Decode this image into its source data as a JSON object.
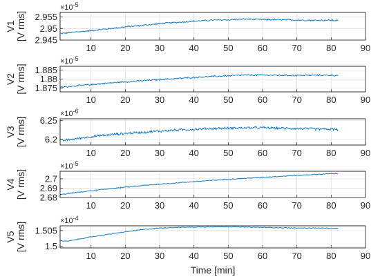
{
  "chart_data": [
    {
      "type": "line",
      "ylabel": "V1",
      "yunit": "[V rms]",
      "exponent_base": "×10",
      "exponent_power": "-5",
      "ylim": [
        2.945,
        2.957
      ],
      "yticks": [
        2.945,
        2.95,
        2.955
      ],
      "ytick_labels": [
        "2.945",
        "2.95",
        "2.955"
      ],
      "xlim": [
        1,
        90
      ],
      "xticks": [
        10,
        20,
        30,
        40,
        50,
        60,
        70,
        80,
        90
      ],
      "xtick_labels": [
        "10",
        "20",
        "30",
        "40",
        "50",
        "60",
        "70",
        "80",
        "90"
      ],
      "grid": true,
      "color": "#0072BD",
      "series": [
        {
          "x": [
            1,
            5,
            10,
            15,
            20,
            25,
            30,
            35,
            40,
            45,
            50,
            55,
            60,
            65,
            70,
            75,
            80,
            82
          ],
          "y": [
            2.9478,
            2.9484,
            2.9491,
            2.9499,
            2.9507,
            2.9514,
            2.9521,
            2.9527,
            2.9532,
            2.9536,
            2.9538,
            2.9541,
            2.9539,
            2.9538,
            2.9537,
            2.9536,
            2.9536,
            2.9535
          ],
          "noise": 0.0004
        }
      ]
    },
    {
      "type": "line",
      "ylabel": "V2",
      "yunit": "[V rms]",
      "exponent_base": "×10",
      "exponent_power": "-5",
      "ylim": [
        1.873,
        1.887
      ],
      "yticks": [
        1.875,
        1.88,
        1.885
      ],
      "ytick_labels": [
        "1.875",
        "1.88",
        "1.885"
      ],
      "xlim": [
        1,
        90
      ],
      "xticks": [
        10,
        20,
        30,
        40,
        50,
        60,
        70,
        80,
        90
      ],
      "xtick_labels": [
        "10",
        "20",
        "30",
        "40",
        "50",
        "60",
        "70",
        "80",
        "90"
      ],
      "grid": true,
      "color": "#0072BD",
      "series": [
        {
          "x": [
            1,
            5,
            10,
            15,
            20,
            25,
            30,
            35,
            40,
            45,
            50,
            55,
            60,
            65,
            70,
            75,
            80,
            82
          ],
          "y": [
            1.8755,
            1.8762,
            1.877,
            1.8778,
            1.8785,
            1.8791,
            1.8797,
            1.8803,
            1.8809,
            1.8814,
            1.8818,
            1.8822,
            1.8822,
            1.8821,
            1.882,
            1.8821,
            1.8821,
            1.882
          ],
          "noise": 0.0005
        }
      ]
    },
    {
      "type": "line",
      "ylabel": "V3",
      "yunit": "[V rms]",
      "exponent_base": "×10",
      "exponent_power": "-6",
      "ylim": [
        6.185,
        6.255
      ],
      "yticks": [
        6.2,
        6.25
      ],
      "ytick_labels": [
        "6.2",
        "6.25"
      ],
      "xlim": [
        1,
        90
      ],
      "xticks": [
        10,
        20,
        30,
        40,
        50,
        60,
        70,
        80,
        90
      ],
      "xtick_labels": [
        "10",
        "20",
        "30",
        "40",
        "50",
        "60",
        "70",
        "80",
        "90"
      ],
      "grid": true,
      "color": "#0072BD",
      "series": [
        {
          "x": [
            1,
            5,
            10,
            15,
            20,
            25,
            30,
            35,
            40,
            45,
            50,
            55,
            60,
            65,
            70,
            75,
            80,
            82
          ],
          "y": [
            6.196,
            6.201,
            6.207,
            6.212,
            6.216,
            6.219,
            6.222,
            6.225,
            6.227,
            6.229,
            6.23,
            6.231,
            6.231,
            6.23,
            6.229,
            6.228,
            6.227,
            6.226
          ],
          "noise": 0.004
        }
      ]
    },
    {
      "type": "line",
      "ylabel": "V4",
      "yunit": "[V rms]",
      "exponent_base": "×10",
      "exponent_power": "-5",
      "ylim": [
        2.68,
        2.708
      ],
      "yticks": [
        2.68,
        2.69,
        2.7
      ],
      "ytick_labels": [
        "2.68",
        "2.69",
        "2.7"
      ],
      "xlim": [
        1,
        90
      ],
      "xticks": [
        10,
        20,
        30,
        40,
        50,
        60,
        70,
        80,
        90
      ],
      "xtick_labels": [
        "10",
        "20",
        "30",
        "40",
        "50",
        "60",
        "70",
        "80",
        "90"
      ],
      "grid": true,
      "color": "#0072BD",
      "series": [
        {
          "x": [
            1,
            5,
            10,
            15,
            20,
            25,
            30,
            35,
            40,
            45,
            50,
            55,
            60,
            65,
            70,
            75,
            80,
            82
          ],
          "y": [
            2.683,
            2.685,
            2.6872,
            2.6892,
            2.691,
            2.6928,
            2.6942,
            2.6956,
            2.697,
            2.6982,
            2.6994,
            2.7005,
            2.7016,
            2.7026,
            2.7036,
            2.7046,
            2.7054,
            2.7056
          ],
          "noise": 0.0006
        }
      ]
    },
    {
      "type": "line",
      "ylabel": "V5",
      "yunit": "[V rms]",
      "exponent_base": "×10",
      "exponent_power": "-4",
      "ylim": [
        1.4995,
        1.5065
      ],
      "yticks": [
        1.5,
        1.505
      ],
      "ytick_labels": [
        "1.5",
        "1.505"
      ],
      "xlim": [
        1,
        90
      ],
      "xticks": [
        10,
        20,
        30,
        40,
        50,
        60,
        70,
        80,
        90
      ],
      "xtick_labels": [
        "10",
        "20",
        "30",
        "40",
        "50",
        "60",
        "70",
        "80",
        "90"
      ],
      "xlabel": "Time [min]",
      "grid": true,
      "color": "#0072BD",
      "series": [
        {
          "x": [
            1,
            3,
            6,
            10,
            15,
            20,
            25,
            30,
            35,
            40,
            45,
            50,
            55,
            60,
            65,
            70,
            75,
            80,
            82
          ],
          "y": [
            1.5018,
            1.5016,
            1.5022,
            1.503,
            1.5038,
            1.5046,
            1.5053,
            1.5058,
            1.506,
            1.5061,
            1.5062,
            1.5062,
            1.5061,
            1.506,
            1.5059,
            1.5058,
            1.5058,
            1.5057,
            1.5057
          ],
          "noise": 0.00015
        }
      ]
    }
  ]
}
